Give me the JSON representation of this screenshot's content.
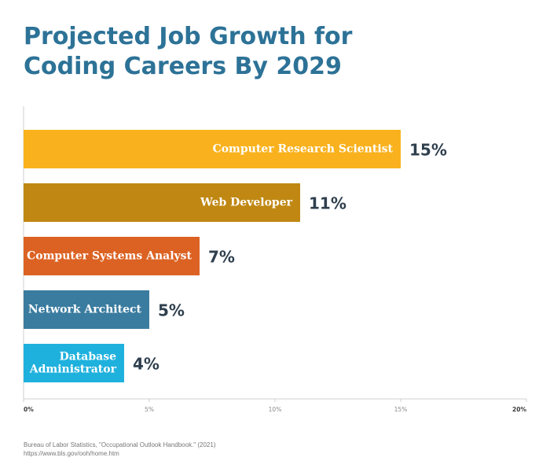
{
  "chart_data": {
    "type": "bar",
    "orientation": "horizontal",
    "title_lines": [
      "Projected Job Growth for",
      "Coding Careers By 2029"
    ],
    "categories": [
      [
        "Computer Research Scientist"
      ],
      [
        "Web Developer"
      ],
      [
        "Computer Systems Analyst"
      ],
      [
        "Network Architect"
      ],
      [
        "Database",
        "Administrator"
      ]
    ],
    "values": [
      15,
      11,
      7,
      5,
      4
    ],
    "value_labels": [
      "15%",
      "11%",
      "7%",
      "5%",
      "4%"
    ],
    "colors": [
      "#f9b21d",
      "#c08812",
      "#dc6223",
      "#3a7c9f",
      "#1fb1dd"
    ],
    "xlim": [
      0,
      20
    ],
    "xticks": [
      0,
      5,
      10,
      15,
      20
    ],
    "xtick_labels": [
      "0%",
      "5%",
      "10%",
      "15%",
      "20%"
    ],
    "grid": false,
    "legend": "none"
  },
  "source": {
    "line1": "Bureau of Labor Statistics, \"Occupational Outlook Handbook.\" (2021)",
    "line2": "https://www.bls.gov/ooh/home.htm"
  }
}
